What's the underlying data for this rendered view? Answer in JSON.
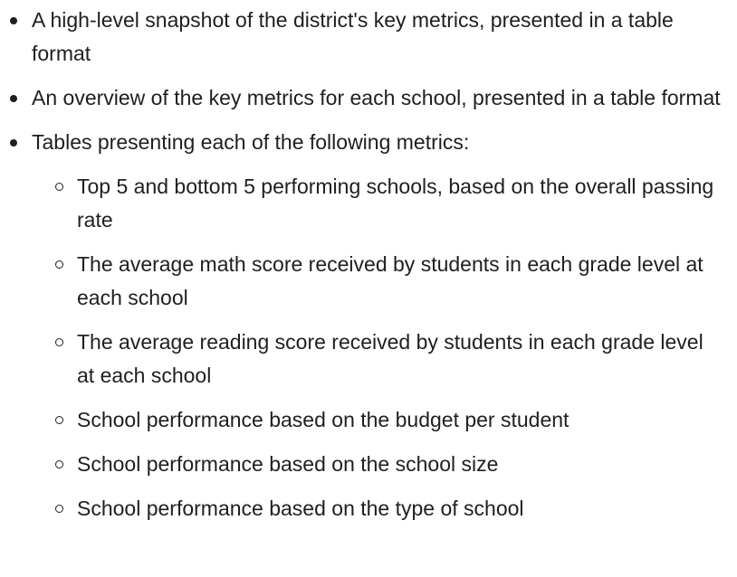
{
  "list": {
    "items": [
      {
        "text": "A high-level snapshot of the district's key metrics, presented in a table format"
      },
      {
        "text": "An overview of the key metrics for each school, presented in a table format"
      },
      {
        "text": "Tables presenting each of the following metrics:",
        "subitems": [
          {
            "text": "Top 5 and bottom 5 performing schools, based on the overall passing rate"
          },
          {
            "text": "The average math score received by students in each grade level at each school"
          },
          {
            "text": "The average reading score received by students in each grade level at each school"
          },
          {
            "text": "School performance based on the budget per student"
          },
          {
            "text": "School performance based on the school size"
          },
          {
            "text": "School performance based on the type of school"
          }
        ]
      }
    ]
  }
}
